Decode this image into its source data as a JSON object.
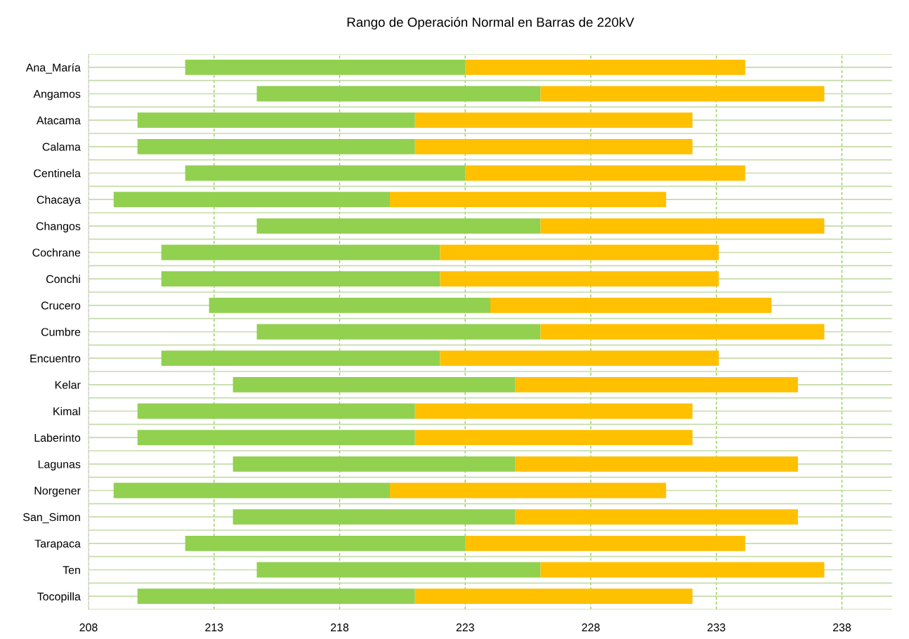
{
  "chart_data": {
    "type": "bar",
    "orientation": "horizontal",
    "stacked": true,
    "title": "Rango de Operación Normal en Barras de 220kV",
    "categories": [
      "Ana_María",
      "Angamos",
      "Atacama",
      "Calama",
      "Centinela",
      "Chacaya",
      "Changos",
      "Cochrane",
      "Conchi",
      "Crucero",
      "Cumbre",
      "Encuentro",
      "Kelar",
      "Kimal",
      "Laberinto",
      "Lagunas",
      "Norgener",
      "San_Simon",
      "Tarapaca",
      "Ten",
      "Tocopilla"
    ],
    "series": [
      {
        "color": "#92d050",
        "base": [
          211.85,
          214.7,
          209.95,
          209.95,
          211.85,
          209,
          214.7,
          210.9,
          210.9,
          212.8,
          214.7,
          210.9,
          213.75,
          209.95,
          209.95,
          213.75,
          209,
          213.75,
          211.85,
          214.7,
          209.95
        ],
        "values": [
          11.15,
          11.3,
          11.05,
          11.05,
          11.15,
          11,
          11.3,
          11.1,
          11.1,
          11.2,
          11.3,
          11.1,
          11.25,
          11.05,
          11.05,
          11.25,
          11,
          11.25,
          11.15,
          11.3,
          11.05
        ]
      },
      {
        "color": "#ffc000",
        "base": [
          223,
          226,
          221,
          221,
          223,
          220,
          226,
          222,
          222,
          224,
          226,
          222,
          225,
          221,
          221,
          225,
          220,
          225,
          223,
          226,
          221
        ],
        "values": [
          11.15,
          11.3,
          11.05,
          11.05,
          11.15,
          11,
          11.3,
          11.1,
          11.1,
          11.2,
          11.3,
          11.1,
          11.25,
          11.05,
          11.05,
          11.25,
          11,
          11.25,
          11.15,
          11.3,
          11.05
        ]
      }
    ],
    "xlim": [
      208,
      240
    ],
    "xticks": [
      208,
      213,
      218,
      223,
      228,
      233,
      238
    ],
    "grid": true
  }
}
